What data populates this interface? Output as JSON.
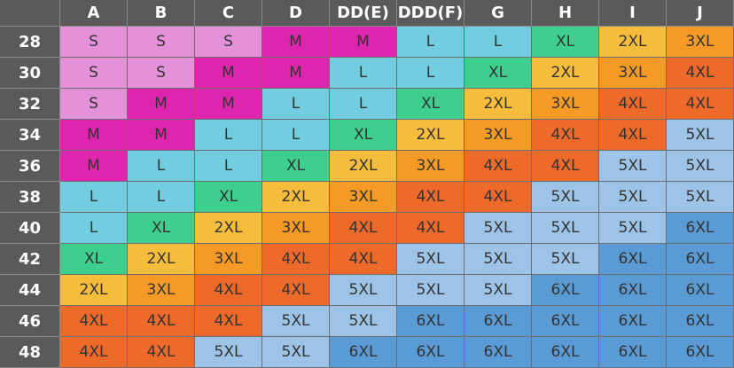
{
  "header": {
    "columns": [
      "A",
      "B",
      "C",
      "D",
      "DD(E)",
      "DDD(F)",
      "G",
      "H",
      "I",
      "J"
    ]
  },
  "size_colors": {
    "S": "#e391d9",
    "M": "#de25ae",
    "L": "#72cde0",
    "XL": "#3ecf8e",
    "2XL": "#f6bd3d",
    "3XL": "#f59b25",
    "4XL": "#ee6a2a",
    "5XL": "#9dc3e6",
    "6XL": "#5b9bd5"
  },
  "rows": [
    {
      "label": "28",
      "cells": [
        "S",
        "S",
        "S",
        "M",
        "M",
        "L",
        "L",
        "XL",
        "2XL",
        "3XL"
      ]
    },
    {
      "label": "30",
      "cells": [
        "S",
        "S",
        "M",
        "M",
        "L",
        "L",
        "XL",
        "2XL",
        "3XL",
        "4XL"
      ]
    },
    {
      "label": "32",
      "cells": [
        "S",
        "M",
        "M",
        "L",
        "L",
        "XL",
        "2XL",
        "3XL",
        "4XL",
        "4XL"
      ]
    },
    {
      "label": "34",
      "cells": [
        "M",
        "M",
        "L",
        "L",
        "XL",
        "2XL",
        "3XL",
        "4XL",
        "4XL",
        "5XL"
      ]
    },
    {
      "label": "36",
      "cells": [
        "M",
        "L",
        "L",
        "XL",
        "2XL",
        "3XL",
        "4XL",
        "4XL",
        "5XL",
        "5XL"
      ]
    },
    {
      "label": "38",
      "cells": [
        "L",
        "L",
        "XL",
        "2XL",
        "3XL",
        "4XL",
        "4XL",
        "5XL",
        "5XL",
        "5XL"
      ]
    },
    {
      "label": "40",
      "cells": [
        "L",
        "XL",
        "2XL",
        "3XL",
        "4XL",
        "4XL",
        "5XL",
        "5XL",
        "5XL",
        "6XL"
      ]
    },
    {
      "label": "42",
      "cells": [
        "XL",
        "2XL",
        "3XL",
        "4XL",
        "4XL",
        "5XL",
        "5XL",
        "5XL",
        "6XL",
        "6XL"
      ]
    },
    {
      "label": "44",
      "cells": [
        "2XL",
        "3XL",
        "4XL",
        "4XL",
        "5XL",
        "5XL",
        "5XL",
        "6XL",
        "6XL",
        "6XL"
      ]
    },
    {
      "label": "46",
      "cells": [
        "4XL",
        "4XL",
        "4XL",
        "5XL",
        "5XL",
        "6XL",
        "6XL",
        "6XL",
        "6XL",
        "6XL"
      ]
    },
    {
      "label": "48",
      "cells": [
        "4XL",
        "4XL",
        "5XL",
        "5XL",
        "6XL",
        "6XL",
        "6XL",
        "6XL",
        "6XL",
        "6XL"
      ]
    }
  ]
}
